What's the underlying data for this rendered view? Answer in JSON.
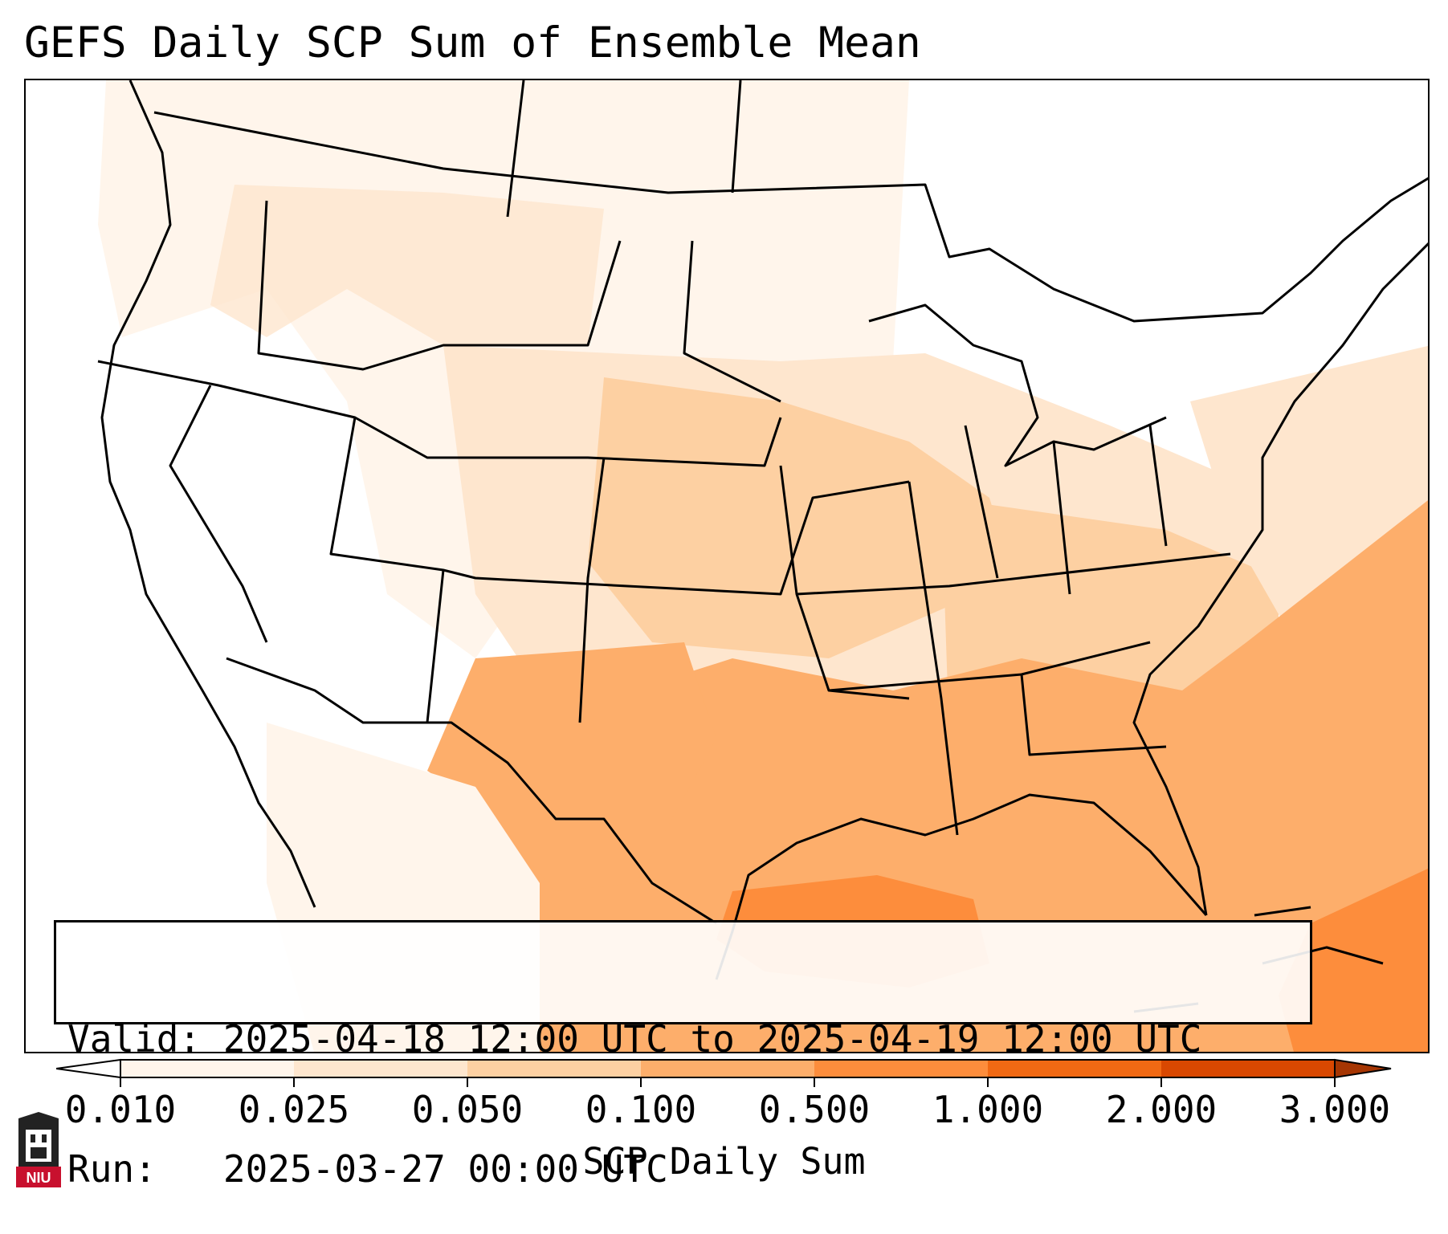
{
  "title": "GEFS Daily SCP Sum of Ensemble Mean",
  "info": {
    "valid_label": "Valid:",
    "valid_value": "2025-04-18 12:00 UTC to 2025-04-19 12:00 UTC",
    "run_label": "Run:",
    "run_value": "2025-03-27 00:00 UTC"
  },
  "colorbar": {
    "label": "SCP Daily Sum",
    "ticks": [
      "0.010",
      "0.025",
      "0.050",
      "0.100",
      "0.500",
      "1.000",
      "2.000",
      "3.000"
    ],
    "colors": [
      "#fff5eb",
      "#fee6ce",
      "#fdd0a2",
      "#fdae6b",
      "#fd8d3c",
      "#f16913",
      "#d94801",
      "#a63603"
    ]
  },
  "logo": {
    "text": "NIU"
  }
}
